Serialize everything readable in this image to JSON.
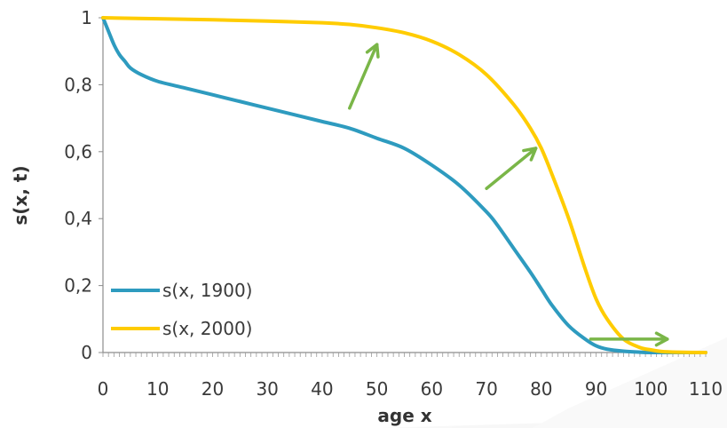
{
  "chart_data": {
    "type": "line",
    "xlabel": "age x",
    "ylabel": "s(x, t)",
    "xlim": [
      0,
      110
    ],
    "ylim": [
      0,
      1
    ],
    "x_ticks": [
      "0",
      "10",
      "20",
      "30",
      "40",
      "50",
      "60",
      "70",
      "80",
      "90",
      "100",
      "110"
    ],
    "y_ticks": [
      "0",
      "0,2",
      "0,4",
      "0,6",
      "0,8",
      "1"
    ],
    "grid": false,
    "legend_position": "bottom-left",
    "series": [
      {
        "name": "s(x, 1900)",
        "color": "#2e9bbf",
        "x": [
          0,
          1,
          2,
          3,
          4,
          5,
          7,
          10,
          15,
          20,
          25,
          30,
          35,
          40,
          45,
          50,
          55,
          60,
          65,
          70,
          72,
          75,
          78,
          80,
          82,
          85,
          88,
          90,
          92,
          95,
          98,
          100,
          105,
          110
        ],
        "y": [
          1.0,
          0.96,
          0.92,
          0.89,
          0.87,
          0.85,
          0.83,
          0.81,
          0.79,
          0.77,
          0.75,
          0.73,
          0.71,
          0.69,
          0.67,
          0.64,
          0.61,
          0.56,
          0.5,
          0.42,
          0.38,
          0.31,
          0.24,
          0.19,
          0.14,
          0.08,
          0.04,
          0.02,
          0.01,
          0.004,
          0.001,
          0.0,
          0.0,
          0.0
        ]
      },
      {
        "name": "s(x, 2000)",
        "color": "#ffcc00",
        "x": [
          0,
          10,
          20,
          30,
          40,
          45,
          50,
          55,
          60,
          65,
          70,
          75,
          78,
          80,
          82,
          85,
          88,
          90,
          92,
          95,
          98,
          100,
          102,
          105,
          110
        ],
        "y": [
          1.0,
          0.997,
          0.994,
          0.99,
          0.985,
          0.98,
          0.97,
          0.955,
          0.93,
          0.89,
          0.83,
          0.74,
          0.67,
          0.61,
          0.53,
          0.4,
          0.25,
          0.16,
          0.1,
          0.04,
          0.015,
          0.008,
          0.003,
          0.001,
          0.0
        ]
      }
    ],
    "annotations": [
      {
        "type": "arrow",
        "color": "#7ab648",
        "from": [
          45,
          0.73
        ],
        "to": [
          50,
          0.92
        ]
      },
      {
        "type": "arrow",
        "color": "#7ab648",
        "from": [
          70,
          0.49
        ],
        "to": [
          79,
          0.61
        ]
      },
      {
        "type": "arrow",
        "color": "#7ab648",
        "from": [
          89,
          0.04
        ],
        "to": [
          103,
          0.04
        ]
      }
    ]
  }
}
